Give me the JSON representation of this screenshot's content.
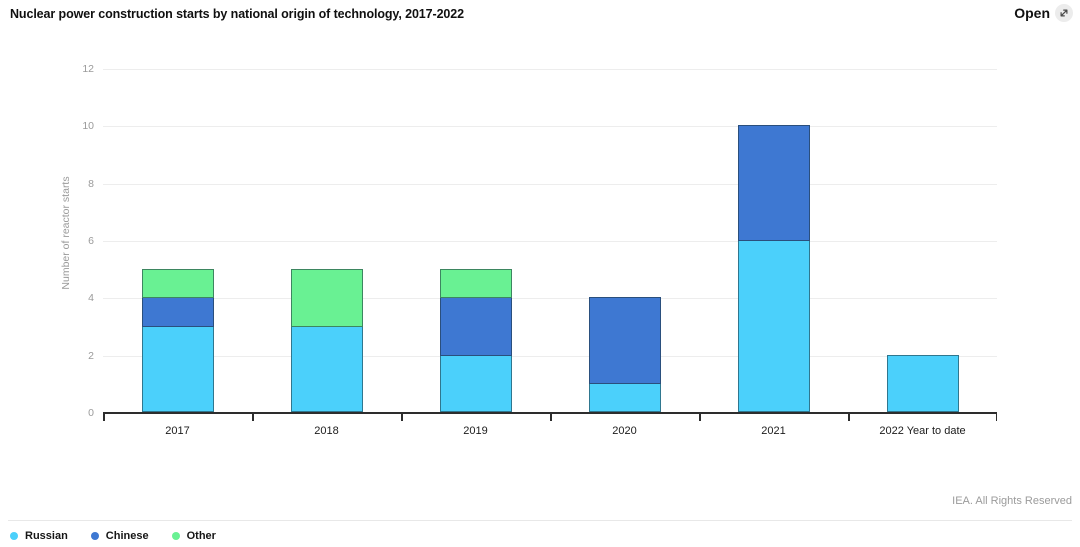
{
  "header": {
    "open_button": {
      "label": "Open",
      "icon": "expand-arrow-icon"
    }
  },
  "chart_data": {
    "type": "bar",
    "stacked": true,
    "title": "Nuclear power construction starts by national origin of technology, 2017-2022",
    "categories": [
      "2017",
      "2018",
      "2019",
      "2020",
      "2021",
      "2022 Year to date"
    ],
    "series": [
      {
        "name": "Russian",
        "color": "#4bd0fb",
        "values": [
          3,
          3,
          2,
          1,
          6,
          2
        ]
      },
      {
        "name": "Chinese",
        "color": "#3e78d2",
        "values": [
          1,
          0,
          2,
          3,
          4,
          0
        ]
      },
      {
        "name": "Other",
        "color": "#69f193",
        "values": [
          1,
          2,
          1,
          0,
          0,
          0
        ]
      }
    ],
    "xlabel": "",
    "ylabel": "Number of reactor starts",
    "ylim": [
      0,
      12
    ],
    "yticks": [
      0,
      2,
      4,
      6,
      8,
      10,
      12
    ],
    "grid": "horizontal",
    "legend_position": "bottom-left"
  },
  "footer": {
    "attribution": "IEA. All Rights Reserved"
  }
}
